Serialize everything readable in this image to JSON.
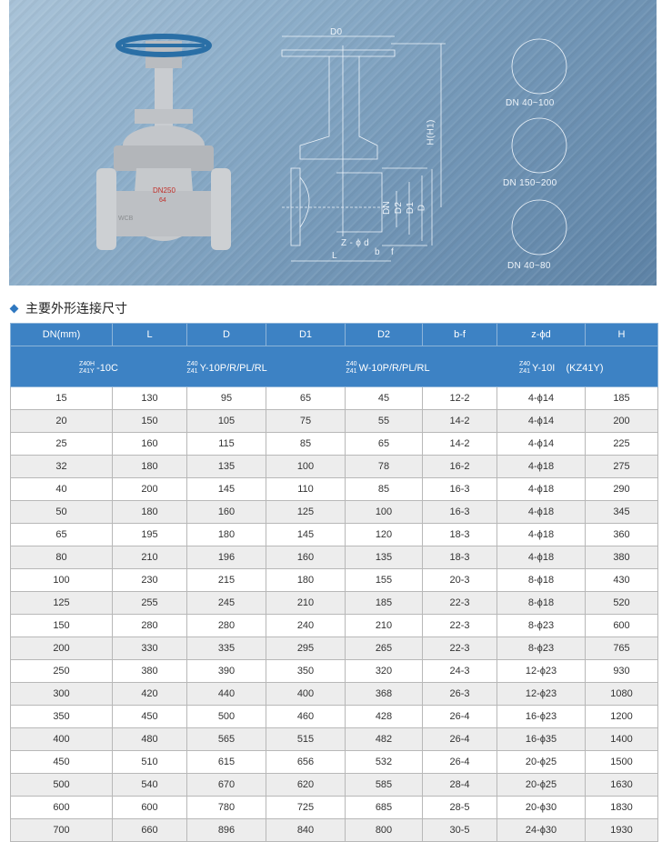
{
  "banner": {
    "photo_markings": {
      "size": "DN250",
      "pressure": "64",
      "material": "WCB"
    },
    "drawing_labels": {
      "d0": "D0",
      "h": "H(H1)",
      "dn": "DN",
      "d2": "D2",
      "d1": "D1",
      "d": "D",
      "zd": "Z - ϕ d",
      "b": "b",
      "f": "f",
      "l": "L"
    },
    "details": [
      {
        "label": "DN 40~100"
      },
      {
        "label": "DN 150~200"
      },
      {
        "label": "DN 40~80"
      }
    ]
  },
  "section_title": "主要外形连接尺寸",
  "table": {
    "columns": [
      "DN(mm)",
      "L",
      "D",
      "D1",
      "D2",
      "b-f",
      "z-ϕd",
      "H"
    ],
    "models": [
      {
        "top": "Z40H",
        "bottom": "Z41Y",
        "rest": "-10C"
      },
      {
        "top": "Z40",
        "bottom": "Z41",
        "rest": "Y-10P/R/PL/RL"
      },
      {
        "top": "Z40",
        "bottom": "Z41",
        "rest": "W-10P/R/PL/RL"
      },
      {
        "top": "Z40",
        "bottom": "Z41",
        "rest": "Y-10I    (KZ41Y)"
      }
    ],
    "rows": [
      [
        "15",
        "130",
        "95",
        "65",
        "45",
        "12-2",
        "4-ϕ14",
        "185"
      ],
      [
        "20",
        "150",
        "105",
        "75",
        "55",
        "14-2",
        "4-ϕ14",
        "200"
      ],
      [
        "25",
        "160",
        "115",
        "85",
        "65",
        "14-2",
        "4-ϕ14",
        "225"
      ],
      [
        "32",
        "180",
        "135",
        "100",
        "78",
        "16-2",
        "4-ϕ18",
        "275"
      ],
      [
        "40",
        "200",
        "145",
        "110",
        "85",
        "16-3",
        "4-ϕ18",
        "290"
      ],
      [
        "50",
        "180",
        "160",
        "125",
        "100",
        "16-3",
        "4-ϕ18",
        "345"
      ],
      [
        "65",
        "195",
        "180",
        "145",
        "120",
        "18-3",
        "4-ϕ18",
        "360"
      ],
      [
        "80",
        "210",
        "196",
        "160",
        "135",
        "18-3",
        "4-ϕ18",
        "380"
      ],
      [
        "100",
        "230",
        "215",
        "180",
        "155",
        "20-3",
        "8-ϕ18",
        "430"
      ],
      [
        "125",
        "255",
        "245",
        "210",
        "185",
        "22-3",
        "8-ϕ18",
        "520"
      ],
      [
        "150",
        "280",
        "280",
        "240",
        "210",
        "22-3",
        "8-ϕ23",
        "600"
      ],
      [
        "200",
        "330",
        "335",
        "295",
        "265",
        "22-3",
        "8-ϕ23",
        "765"
      ],
      [
        "250",
        "380",
        "390",
        "350",
        "320",
        "24-3",
        "12-ϕ23",
        "930"
      ],
      [
        "300",
        "420",
        "440",
        "400",
        "368",
        "26-3",
        "12-ϕ23",
        "1080"
      ],
      [
        "350",
        "450",
        "500",
        "460",
        "428",
        "26-4",
        "16-ϕ23",
        "1200"
      ],
      [
        "400",
        "480",
        "565",
        "515",
        "482",
        "26-4",
        "16-ϕ35",
        "1400"
      ],
      [
        "450",
        "510",
        "615",
        "656",
        "532",
        "26-4",
        "20-ϕ25",
        "1500"
      ],
      [
        "500",
        "540",
        "670",
        "620",
        "585",
        "28-4",
        "20-ϕ25",
        "1630"
      ],
      [
        "600",
        "600",
        "780",
        "725",
        "685",
        "28-5",
        "20-ϕ30",
        "1830"
      ],
      [
        "700",
        "660",
        "896",
        "840",
        "800",
        "30-5",
        "24-ϕ30",
        "1930"
      ]
    ]
  },
  "colors": {
    "header_blue": "#3d82c4",
    "handwheel": "#2a6fa6",
    "banner": "#7fa2c1"
  }
}
